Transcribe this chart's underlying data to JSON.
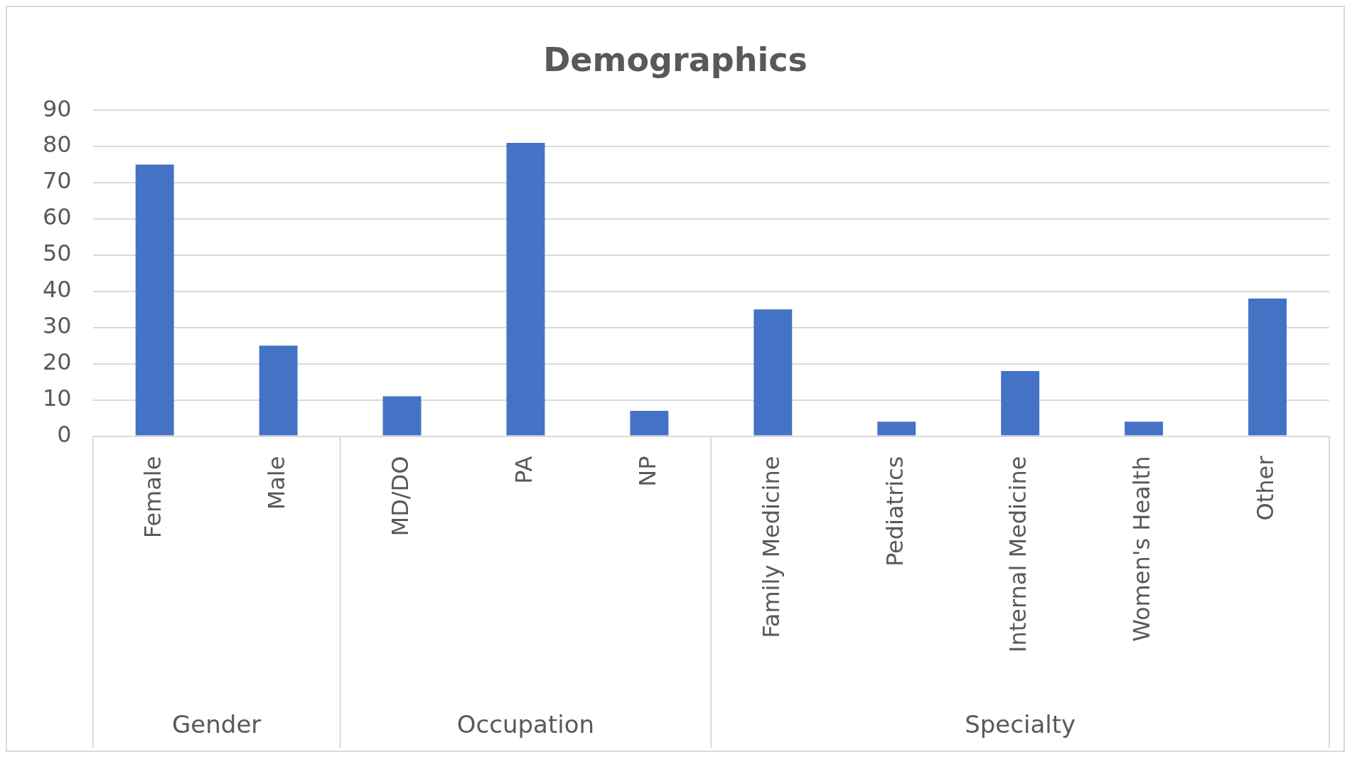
{
  "chart_data": {
    "type": "bar",
    "title": "Demographics",
    "categories": [
      "Female",
      "Male",
      "MD/DO",
      "PA",
      "NP",
      "Family Medicine",
      "Pediatrics",
      "Internal Medicine",
      "Women's Health",
      "Other"
    ],
    "values": [
      75,
      25,
      11,
      81,
      7,
      35,
      4,
      18,
      4,
      38
    ],
    "color": "#4472c4",
    "ylim": [
      0,
      90
    ],
    "yticks": [
      0,
      10,
      20,
      30,
      40,
      50,
      60,
      70,
      80,
      90
    ],
    "grid": "y",
    "legend": false,
    "annotations": [
      "Gender",
      "Occupation",
      "Specialty"
    ]
  }
}
